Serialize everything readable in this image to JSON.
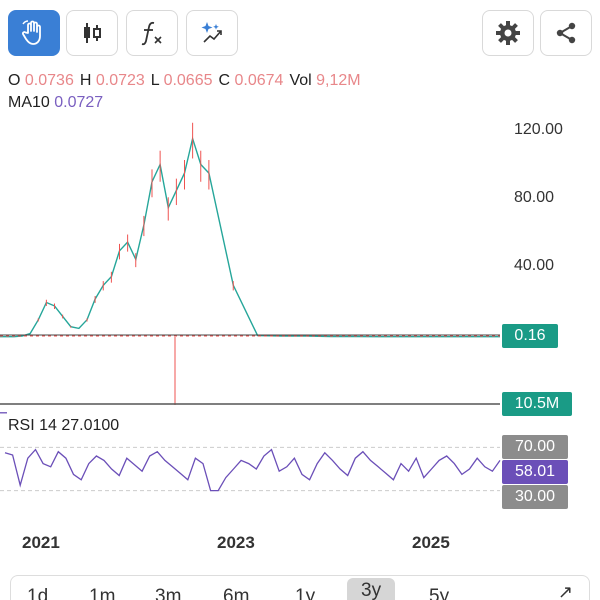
{
  "toolbar": {
    "buttons": [
      "hand-pointer",
      "candlestick",
      "function",
      "magic-indicator",
      "settings",
      "share"
    ],
    "active_button": "hand-pointer"
  },
  "ohlc": {
    "open_label": "O",
    "open": "0.0736",
    "high_label": "H",
    "high": "0.0723",
    "low_label": "L",
    "low": "0.0665",
    "close_label": "C",
    "close": "0.0674",
    "vol_label": "Vol",
    "vol": "9,12M"
  },
  "ma": {
    "label": "MA10",
    "value": "0.0727"
  },
  "price_axis": {
    "ticks": [
      "120.00",
      "80.00",
      "40.00"
    ]
  },
  "badges": {
    "price": "0.16",
    "volume": "10.5M",
    "rsi_upper": "70.00",
    "rsi_value": "58.01",
    "rsi_lower": "30.00"
  },
  "rsi": {
    "label": "RSI 14 27.0100"
  },
  "dates": [
    "2021",
    "2023",
    "2025"
  ],
  "ranges": [
    "1d",
    "1m",
    "3m",
    "6m",
    "1y",
    "3y",
    "5y"
  ],
  "active_range": "3y",
  "colors": {
    "accent": "#3a7fd5",
    "price_up": "#26a69a",
    "price_line": "#ef5350",
    "rsi_line": "#6b4fb8",
    "badge_teal": "#1a9b86",
    "badge_grey": "#8c8c8c",
    "badge_purple": "#6b4fb8"
  },
  "chart_data": [
    {
      "type": "line",
      "title": "",
      "xlabel": "",
      "ylabel": "",
      "x_ticks": [
        "2021",
        "2023",
        "2025"
      ],
      "y_ticks": [
        40,
        80,
        120
      ],
      "ylim": [
        0,
        130
      ],
      "series": [
        {
          "x": [
            "2020-05",
            "2020-08",
            "2020-10",
            "2020-12",
            "2021-01",
            "2021-02",
            "2021-03",
            "2021-04",
            "2021-05",
            "2021-06",
            "2021-07",
            "2021-08",
            "2021-09",
            "2021-10",
            "2021-11",
            "2021-12",
            "2022-01",
            "2022-02",
            "2022-03",
            "2022-04",
            "2022-05",
            "2022-06",
            "2022-07",
            "2022-08",
            "2022-09",
            "2022-10",
            "2022-11",
            "2022-12",
            "2023-03",
            "2023-06",
            "2023-09",
            "2023-12",
            "2024-03",
            "2024-06",
            "2024-09",
            "2024-12",
            "2025-03",
            "2025-06",
            "2025-09"
          ],
          "y": [
            0.2,
            0.2,
            0.2,
            0.2,
            0.5,
            2,
            10,
            20,
            18,
            12,
            6,
            5,
            10,
            22,
            30,
            35,
            50,
            55,
            45,
            65,
            90,
            100,
            75,
            85,
            95,
            115,
            100,
            95,
            30,
            0.8,
            0.6,
            0.5,
            0.3,
            0.3,
            0.2,
            0.2,
            0.2,
            0.16,
            0.16
          ]
        }
      ],
      "last_price": 0.16,
      "grid": false,
      "legend": "none"
    },
    {
      "type": "line",
      "title": "",
      "y_levels": [
        70,
        30
      ],
      "series": [
        {
          "y": [
            65,
            63,
            35,
            60,
            68,
            55,
            52,
            66,
            60,
            45,
            40,
            55,
            62,
            58,
            50,
            44,
            60,
            54,
            48,
            62,
            66,
            58,
            52,
            46,
            40,
            60,
            55,
            30,
            30,
            42,
            50,
            58,
            55,
            50,
            62,
            68,
            48,
            52,
            60,
            45,
            40,
            55,
            65,
            58,
            50,
            44,
            60,
            66,
            58,
            52,
            46,
            40,
            55,
            48,
            60,
            42,
            50,
            58,
            62,
            55,
            45,
            50,
            60,
            52,
            48,
            58
          ]
        }
      ],
      "last_value": 58.01
    }
  ]
}
